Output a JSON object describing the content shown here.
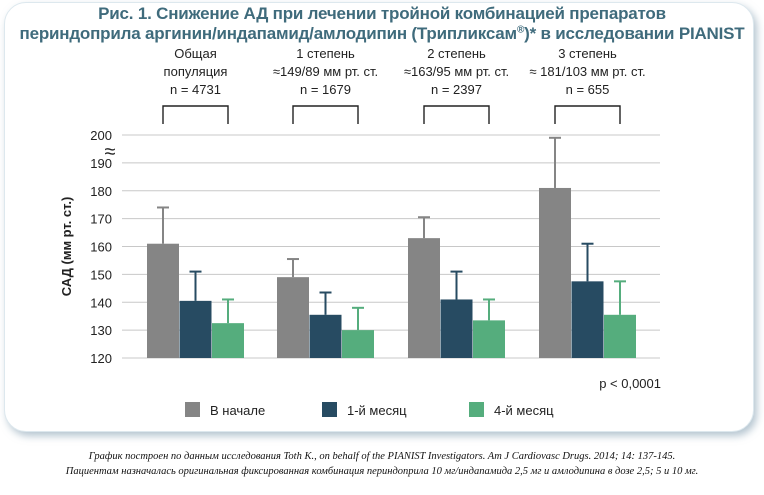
{
  "title": {
    "line1": "Рис. 1. Снижение АД при лечении тройной комбинацией препаратов",
    "line2_main": "периндоприла аргинин/индапамид/амлодипин (Трипликсам",
    "line2_sup": "®",
    "line2_tail": ")* в исследовании PIANIST"
  },
  "colors": {
    "baseline": "#858585",
    "month1": "#274b62",
    "month4": "#55ad7d",
    "title": "#3f6b7c"
  },
  "chart_data": {
    "type": "bar",
    "ylabel": "САД (мм рт. ст.)",
    "ylim": [
      120,
      200
    ],
    "yticks": [
      120,
      130,
      140,
      150,
      160,
      170,
      180,
      190,
      200
    ],
    "axis_break_symbol": "≈",
    "groups": [
      {
        "line1": "Общая",
        "line2": "популяция",
        "line3": "n = 4731"
      },
      {
        "line1": "1 степень",
        "line2": "≈149/89 мм рт. ст.",
        "line3": "n = 1679"
      },
      {
        "line1": "2 степень",
        "line2": "≈163/95 мм рт. ст.",
        "line3": "n = 2397"
      },
      {
        "line1": "3 степень",
        "line2": "≈ 181/103 мм рт. ст.",
        "line3": "n = 655"
      }
    ],
    "series": [
      {
        "name": "В начале",
        "values": [
          161,
          149,
          163,
          181
        ],
        "errors": [
          13,
          6.5,
          7.5,
          18
        ]
      },
      {
        "name": "1-й месяц",
        "values": [
          140.5,
          135.5,
          141,
          147.5
        ],
        "errors": [
          10.5,
          8,
          10,
          13.5
        ]
      },
      {
        "name": "4-й месяц",
        "values": [
          132.5,
          130,
          133.5,
          135.5
        ],
        "errors": [
          8.5,
          8,
          7.5,
          12
        ]
      }
    ],
    "annotation": "p < 0,0001"
  },
  "footnote": {
    "line1": "График построен по данным исследования Toth K., on behalf of the PIANIST Investigators. Am J Cardiovasc Drugs. 2014; 14: 137-145.",
    "line2": "Пациентам назначалась оригинальная фиксированная комбинация периндоприла 10 мг/индапамида 2,5 мг и амлодипина в дозе 2,5; 5 и 10 мг."
  }
}
